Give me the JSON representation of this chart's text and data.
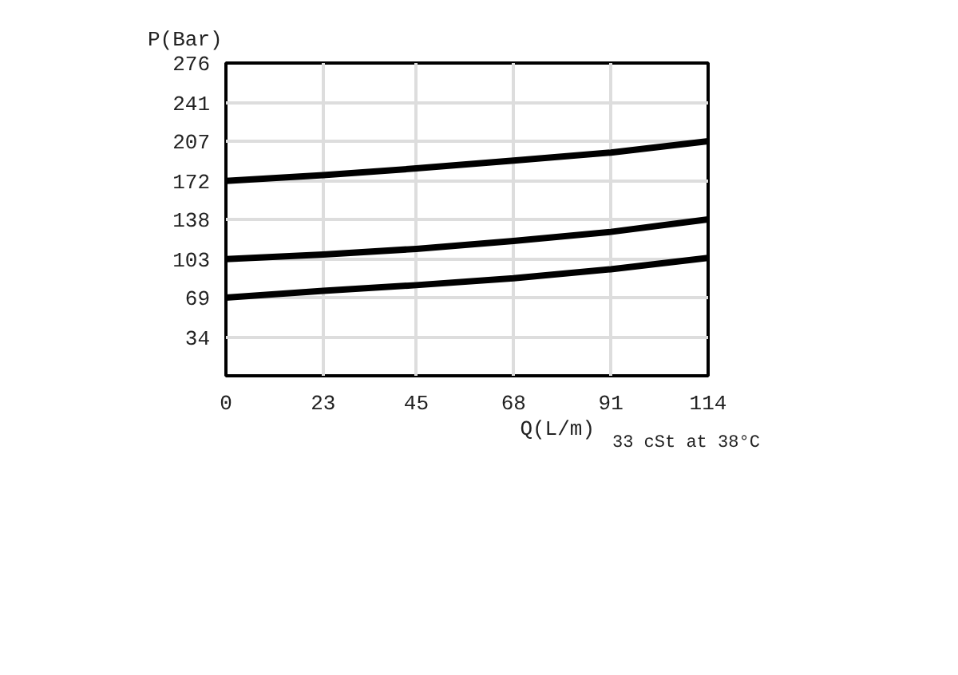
{
  "chart_data": {
    "type": "line",
    "xlabel": "Q(L/m)",
    "ylabel": "P(Bar)",
    "annotations": [
      "33 cSt at 38°C"
    ],
    "x": [
      0,
      23,
      45,
      68,
      91,
      114
    ],
    "series": [
      {
        "color": "#000000",
        "values": [
          172,
          177,
          183,
          190,
          197,
          207
        ]
      },
      {
        "color": "#000000",
        "values": [
          103,
          107,
          112,
          119,
          127,
          138
        ]
      },
      {
        "color": "#000000",
        "values": [
          69,
          75,
          80,
          86,
          94,
          104
        ]
      }
    ],
    "xlim": [
      0,
      114
    ],
    "ylim": [
      0,
      276
    ],
    "xticks": [
      0,
      23,
      45,
      68,
      91,
      114
    ],
    "yticks": [
      34,
      69,
      103,
      138,
      172,
      207,
      241,
      276
    ],
    "grid": true,
    "line_style": "solid"
  }
}
